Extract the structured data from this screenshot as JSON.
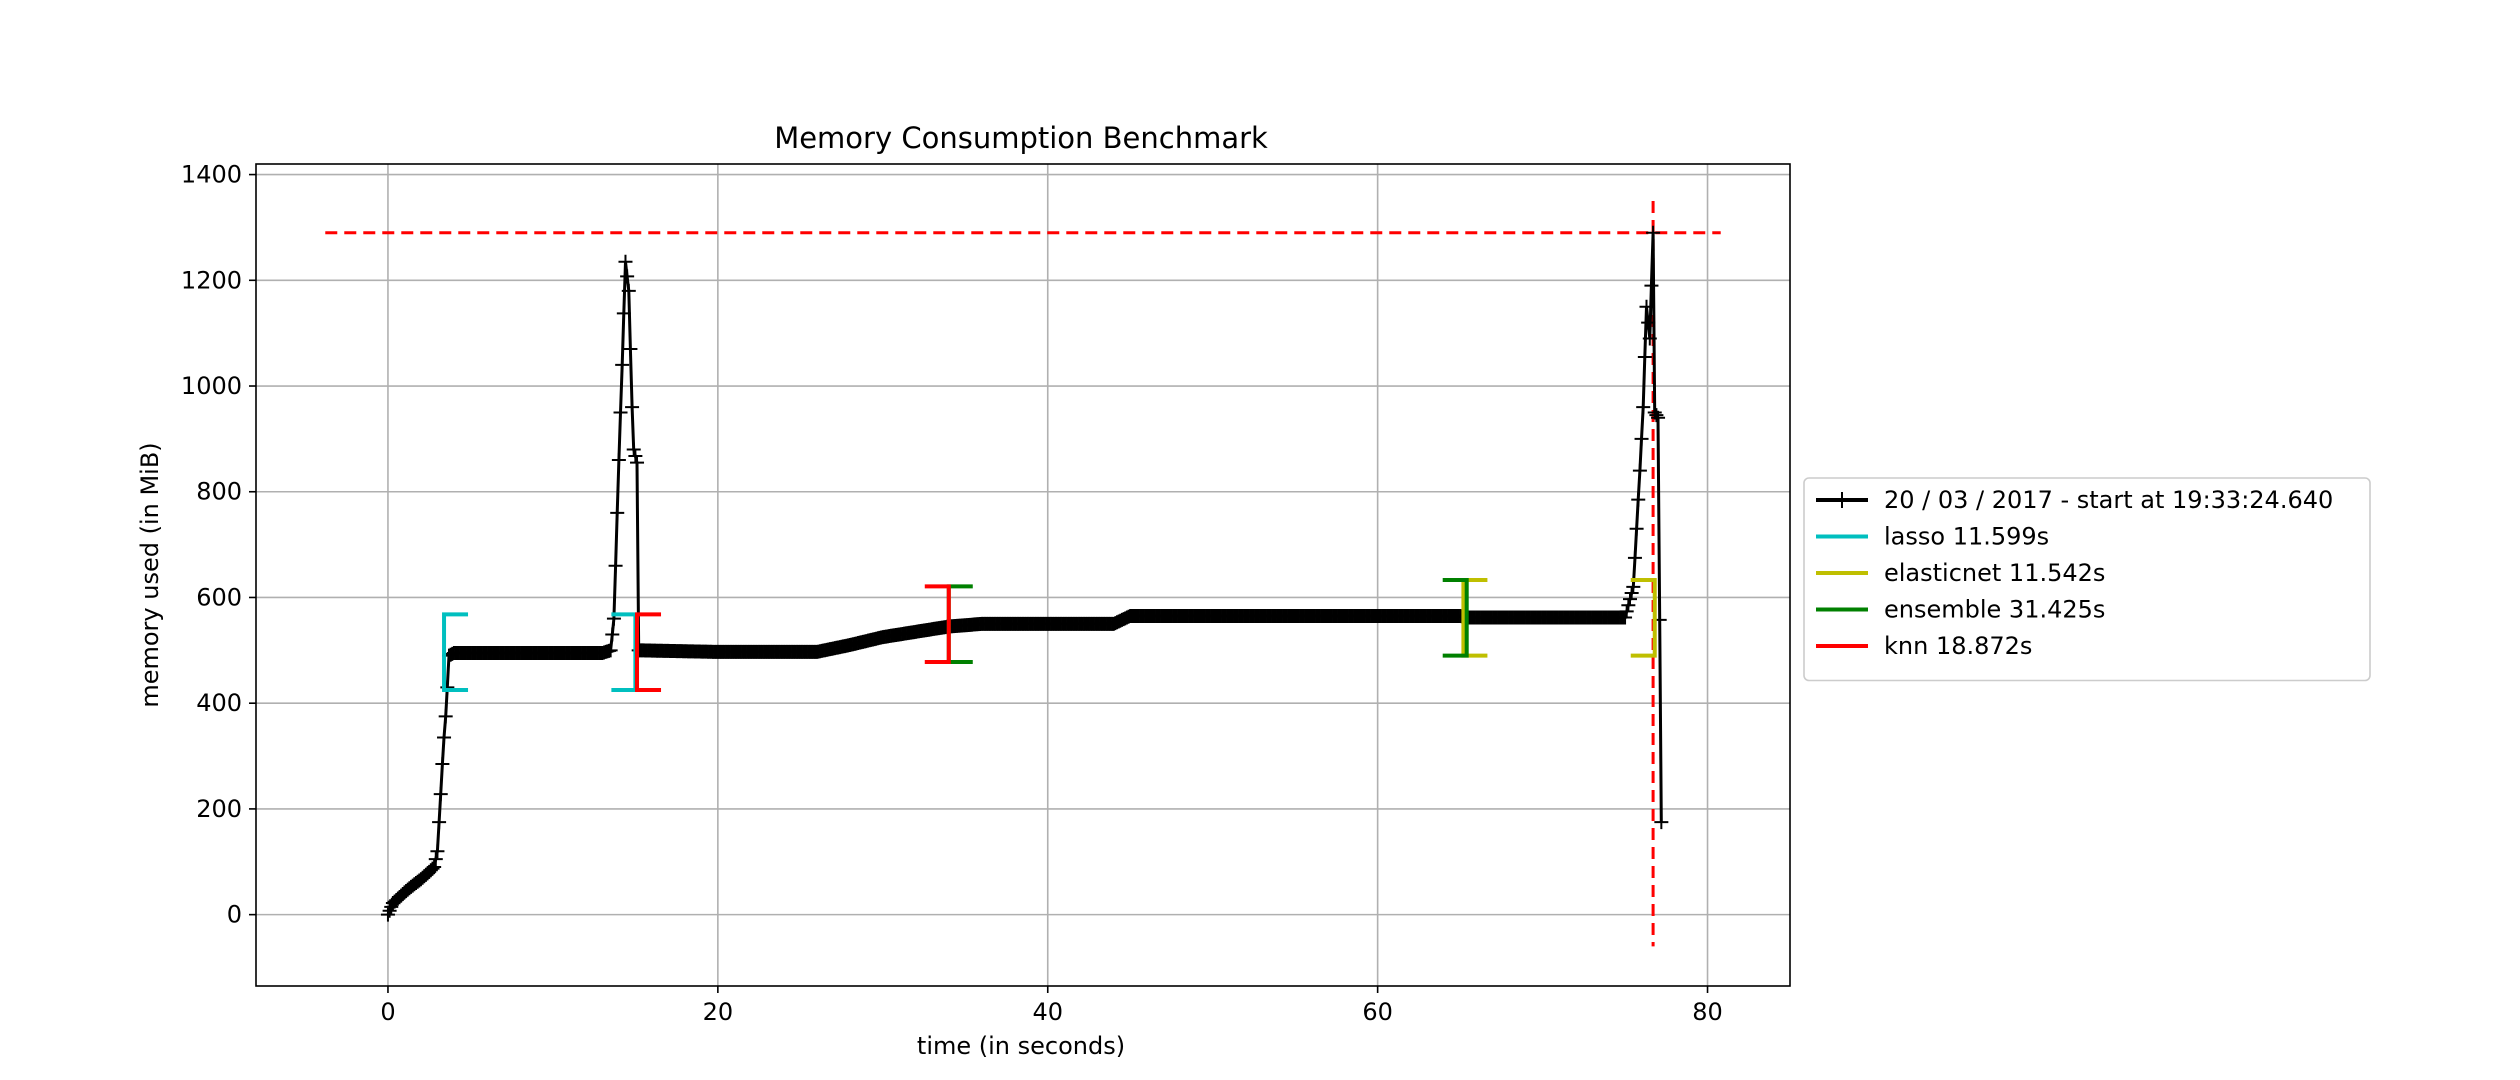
{
  "chart_data": {
    "type": "line",
    "title": "Memory Consumption Benchmark",
    "xlabel": "time (in seconds)",
    "ylabel": "memory used (in MiB)",
    "xlim": [
      -8,
      85
    ],
    "ylim": [
      -135,
      1420
    ],
    "xticks": [
      0,
      20,
      40,
      60,
      80
    ],
    "yticks": [
      0,
      200,
      400,
      600,
      800,
      1000,
      1200,
      1400
    ],
    "grid": true,
    "legend_position": "right",
    "series": [
      {
        "name": "20 / 03 / 2017 - start at 19:33:24.640",
        "color": "#000000",
        "marker": "+",
        "points": [
          [
            0.0,
            0
          ],
          [
            0.3,
            22
          ],
          [
            0.6,
            30
          ],
          [
            1.0,
            42
          ],
          [
            1.5,
            55
          ],
          [
            2.0,
            67
          ],
          [
            2.4,
            78
          ],
          [
            2.8,
            90
          ],
          [
            3.0,
            120
          ],
          [
            3.1,
            175
          ],
          [
            3.2,
            228
          ],
          [
            3.3,
            285
          ],
          [
            3.4,
            335
          ],
          [
            3.5,
            375
          ],
          [
            3.6,
            430
          ],
          [
            3.7,
            490
          ],
          [
            4.0,
            495
          ],
          [
            8.0,
            495
          ],
          [
            13.0,
            495
          ],
          [
            13.5,
            500
          ],
          [
            13.7,
            560
          ],
          [
            13.8,
            660
          ],
          [
            13.9,
            760
          ],
          [
            14.0,
            860
          ],
          [
            14.2,
            1040
          ],
          [
            14.4,
            1235
          ],
          [
            14.6,
            1180
          ],
          [
            14.8,
            960
          ],
          [
            14.9,
            880
          ],
          [
            15.1,
            855
          ],
          [
            15.2,
            500
          ],
          [
            20.0,
            497
          ],
          [
            26.0,
            497
          ],
          [
            28.0,
            510
          ],
          [
            30.0,
            525
          ],
          [
            32.0,
            535
          ],
          [
            34.0,
            545
          ],
          [
            36.0,
            550
          ],
          [
            44.0,
            550
          ],
          [
            45.0,
            565
          ],
          [
            60.0,
            565
          ],
          [
            65.0,
            565
          ],
          [
            65.5,
            562
          ],
          [
            75.0,
            562
          ],
          [
            75.5,
            620
          ],
          [
            75.7,
            730
          ],
          [
            75.9,
            840
          ],
          [
            76.1,
            960
          ],
          [
            76.3,
            1150
          ],
          [
            76.5,
            1090
          ],
          [
            76.7,
            1290
          ],
          [
            76.8,
            950
          ],
          [
            77.0,
            940
          ],
          [
            77.2,
            175
          ]
        ]
      }
    ],
    "brackets": [
      {
        "name": "lasso 11.599s",
        "color": "#00bfbf",
        "segments": [
          {
            "x": 3.4,
            "ymin": 425,
            "ymax": 568
          },
          {
            "x": 15.0,
            "ymin": 425,
            "ymax": 568
          }
        ]
      },
      {
        "name": "elasticnet 11.542s",
        "color": "#bfbf00",
        "segments": [
          {
            "x": 65.2,
            "ymin": 490,
            "ymax": 633
          },
          {
            "x": 76.8,
            "ymin": 490,
            "ymax": 633
          }
        ]
      },
      {
        "name": "ensemble 31.425s",
        "color": "#008000",
        "segments": [
          {
            "x": 34.0,
            "ymin": 478,
            "ymax": 621
          },
          {
            "x": 65.4,
            "ymin": 490,
            "ymax": 633
          }
        ]
      },
      {
        "name": "knn 18.872s",
        "color": "#ff0000",
        "segments": [
          {
            "x": 15.1,
            "ymin": 425,
            "ymax": 568
          },
          {
            "x": 34.0,
            "ymin": 478,
            "ymax": 621
          }
        ]
      }
    ],
    "max_hline": {
      "y": 1290,
      "xmin": -3.8,
      "xmax": 80.8,
      "color": "#ff0000"
    },
    "max_vline": {
      "x": 76.7,
      "ymin": -60,
      "ymax": 1350,
      "color": "#ff0000"
    }
  }
}
